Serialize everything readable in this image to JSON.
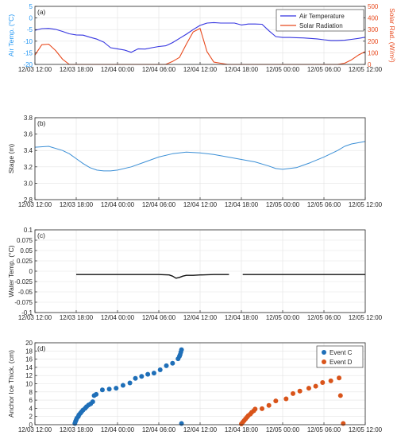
{
  "chart_data": [
    {
      "id": "a",
      "type": "line",
      "panel_label": "(a)",
      "xlabels": [
        "12/03 12:00",
        "12/03 18:00",
        "12/04 00:00",
        "12/04 06:00",
        "12/04 12:00",
        "12/04 18:00",
        "12/05 00:00",
        "12/05 06:00",
        "12/05 12:00"
      ],
      "xlim": [
        0,
        48
      ],
      "ylabel": "Air Temp. (°C)",
      "ylim": [
        -20,
        5
      ],
      "yticks": [
        -20,
        -15,
        -10,
        -5,
        0,
        5
      ],
      "y2label": "Solar Rad. (W/m²)",
      "y2lim": [
        0,
        500
      ],
      "y2ticks": [
        0,
        100,
        200,
        300,
        400,
        500
      ],
      "legend": "top-right",
      "grid": true,
      "colors": {
        "left_axis": "#2196f3",
        "right_axis": "#e8491d"
      },
      "series": [
        {
          "name": "Air Temperature",
          "color": "#3535e0",
          "axis": "left",
          "x": [
            0,
            1,
            2,
            3,
            4,
            5,
            6,
            7,
            8,
            9,
            10,
            11,
            12,
            13,
            14,
            15,
            16,
            17,
            18,
            19,
            20,
            21,
            22,
            23,
            24,
            25,
            26,
            27,
            28,
            29,
            30,
            31,
            32,
            33,
            34,
            35,
            36,
            37,
            38,
            39,
            40,
            41,
            42,
            43,
            44,
            45,
            46,
            47,
            48
          ],
          "y": [
            -5.3,
            -4.6,
            -4.5,
            -4.9,
            -5.8,
            -6.8,
            -7.3,
            -7.4,
            -8.3,
            -9.1,
            -10.4,
            -12.8,
            -13.3,
            -13.8,
            -14.8,
            -13.3,
            -13.4,
            -12.8,
            -12.3,
            -12.0,
            -10.6,
            -8.8,
            -7.0,
            -5.0,
            -3.2,
            -2.2,
            -2.0,
            -2.2,
            -2.2,
            -2.2,
            -3.0,
            -2.6,
            -2.6,
            -2.7,
            -5.5,
            -8.0,
            -8.4,
            -8.4,
            -8.5,
            -8.6,
            -8.8,
            -9.0,
            -9.4,
            -9.7,
            -9.7,
            -9.6,
            -9.2,
            -8.8,
            -8.3
          ]
        },
        {
          "name": "Solar Radiation",
          "color": "#e8491d",
          "axis": "right",
          "x": [
            0,
            1,
            2,
            3,
            4,
            5,
            6,
            7,
            8,
            19,
            20,
            21,
            22,
            23,
            24,
            25,
            26,
            27,
            28,
            43,
            44,
            45,
            46,
            47,
            48
          ],
          "y": [
            80,
            170,
            175,
            120,
            45,
            0,
            0,
            0,
            0,
            0,
            25,
            60,
            175,
            280,
            310,
            110,
            20,
            10,
            0,
            0,
            0,
            10,
            40,
            80,
            110
          ]
        }
      ]
    },
    {
      "id": "b",
      "type": "line",
      "panel_label": "(b)",
      "xlabels": [
        "12/03 12:00",
        "12/03 18:00",
        "12/04 00:00",
        "12/04 06:00",
        "12/04 12:00",
        "12/04 18:00",
        "12/05 00:00",
        "12/05 06:00",
        "12/05 12:00"
      ],
      "xlim": [
        0,
        48
      ],
      "ylabel": "Stage (m)",
      "ylim": [
        2.8,
        3.8
      ],
      "yticks": [
        2.8,
        3.0,
        3.2,
        3.4,
        3.6,
        3.8
      ],
      "grid": true,
      "series": [
        {
          "color": "#3b8fd6",
          "x": [
            0,
            2,
            4,
            5,
            6,
            7,
            8,
            9,
            10,
            11,
            12,
            14,
            16,
            18,
            20,
            22,
            24,
            26,
            28,
            30,
            32,
            34,
            35,
            36,
            38,
            40,
            42,
            44,
            45,
            46,
            48
          ],
          "y": [
            3.44,
            3.45,
            3.4,
            3.36,
            3.3,
            3.24,
            3.19,
            3.16,
            3.15,
            3.15,
            3.16,
            3.2,
            3.26,
            3.32,
            3.36,
            3.38,
            3.37,
            3.35,
            3.32,
            3.29,
            3.26,
            3.21,
            3.18,
            3.17,
            3.19,
            3.25,
            3.32,
            3.4,
            3.45,
            3.48,
            3.51
          ]
        }
      ]
    },
    {
      "id": "c",
      "type": "line",
      "panel_label": "(c)",
      "xlabels": [
        "12/03 12:00",
        "12/03 18:00",
        "12/04 00:00",
        "12/04 06:00",
        "12/04 12:00",
        "12/04 18:00",
        "12/05 00:00",
        "12/05 06:00",
        "12/05 12:00"
      ],
      "xlim": [
        0,
        48
      ],
      "ylabel": "Water Temp. (°C)",
      "ylim": [
        -0.1,
        0.1
      ],
      "yticks": [
        -0.1,
        -0.075,
        -0.05,
        -0.025,
        0,
        0.025,
        0.05,
        0.075,
        0.1
      ],
      "yticklabels": [
        "-0.1",
        "-0.075",
        "-0.05",
        "-0.025",
        "0",
        "0.025",
        "0.05",
        "0.075",
        "0.1"
      ],
      "grid": true,
      "series": [
        {
          "color": "#111111",
          "segments": [
            {
              "x": [
                6,
                10,
                14,
                18,
                19.5,
                20,
                20.5,
                21,
                21.5,
                22,
                23,
                24,
                26,
                28.2
              ],
              "y": [
                -0.008,
                -0.008,
                -0.008,
                -0.008,
                -0.009,
                -0.012,
                -0.017,
                -0.015,
                -0.012,
                -0.01,
                -0.01,
                -0.009,
                -0.008,
                -0.008
              ]
            },
            {
              "x": [
                30.2,
                34,
                38,
                42,
                46,
                48
              ],
              "y": [
                -0.008,
                -0.008,
                -0.008,
                -0.008,
                -0.008,
                -0.008
              ]
            }
          ]
        }
      ]
    },
    {
      "id": "d",
      "type": "scatter",
      "panel_label": "(d)",
      "xlabels": [
        "12/03 12:00",
        "12/03 18:00",
        "12/04 00:00",
        "12/04 06:00",
        "12/04 12:00",
        "12/04 18:00",
        "12/05 00:00",
        "12/05 06:00",
        "12/05 12:00"
      ],
      "xlim": [
        0,
        48
      ],
      "ylabel": "Anchor Ice Thick. (cm)",
      "ylim": [
        0,
        20
      ],
      "yticks": [
        0,
        2,
        4,
        6,
        8,
        10,
        12,
        14,
        16,
        18,
        20
      ],
      "legend": "top-right",
      "grid": true,
      "series": [
        {
          "name": "Event C",
          "color": "#1f6fb8",
          "points": [
            [
              5.8,
              0.3
            ],
            [
              5.9,
              0.8
            ],
            [
              6.0,
              1.2
            ],
            [
              6.1,
              1.6
            ],
            [
              6.3,
              2.0
            ],
            [
              6.4,
              2.4
            ],
            [
              6.6,
              2.8
            ],
            [
              6.8,
              3.2
            ],
            [
              7.0,
              3.6
            ],
            [
              7.3,
              4.0
            ],
            [
              7.5,
              4.4
            ],
            [
              7.8,
              4.8
            ],
            [
              8.1,
              5.1
            ],
            [
              8.4,
              5.6
            ],
            [
              8.6,
              7.1
            ],
            [
              8.9,
              7.4
            ],
            [
              9.8,
              8.5
            ],
            [
              10.8,
              8.7
            ],
            [
              11.8,
              8.9
            ],
            [
              12.8,
              9.6
            ],
            [
              13.8,
              10.2
            ],
            [
              14.6,
              11.3
            ],
            [
              15.5,
              11.8
            ],
            [
              16.4,
              12.3
            ],
            [
              17.3,
              12.6
            ],
            [
              18.2,
              13.4
            ],
            [
              19.1,
              14.4
            ],
            [
              20.0,
              15.0
            ],
            [
              20.8,
              16.1
            ],
            [
              21.0,
              16.7
            ],
            [
              21.1,
              17.1
            ],
            [
              21.2,
              17.7
            ],
            [
              21.3,
              18.3
            ],
            [
              21.3,
              0.3
            ]
          ]
        },
        {
          "name": "Event D",
          "color": "#d9541a",
          "points": [
            [
              30.0,
              0.2
            ],
            [
              30.2,
              0.6
            ],
            [
              30.4,
              1.0
            ],
            [
              30.6,
              1.4
            ],
            [
              30.8,
              1.8
            ],
            [
              31.0,
              2.2
            ],
            [
              31.3,
              2.6
            ],
            [
              31.5,
              3.0
            ],
            [
              31.8,
              3.4
            ],
            [
              32.0,
              3.8
            ],
            [
              33.0,
              3.9
            ],
            [
              34.0,
              4.7
            ],
            [
              35.0,
              5.8
            ],
            [
              36.5,
              6.3
            ],
            [
              37.5,
              7.6
            ],
            [
              38.5,
              8.2
            ],
            [
              39.8,
              8.9
            ],
            [
              40.8,
              9.4
            ],
            [
              41.8,
              10.3
            ],
            [
              43.0,
              10.7
            ],
            [
              44.2,
              11.4
            ],
            [
              44.4,
              7.1
            ],
            [
              44.8,
              0.3
            ]
          ]
        }
      ]
    }
  ]
}
